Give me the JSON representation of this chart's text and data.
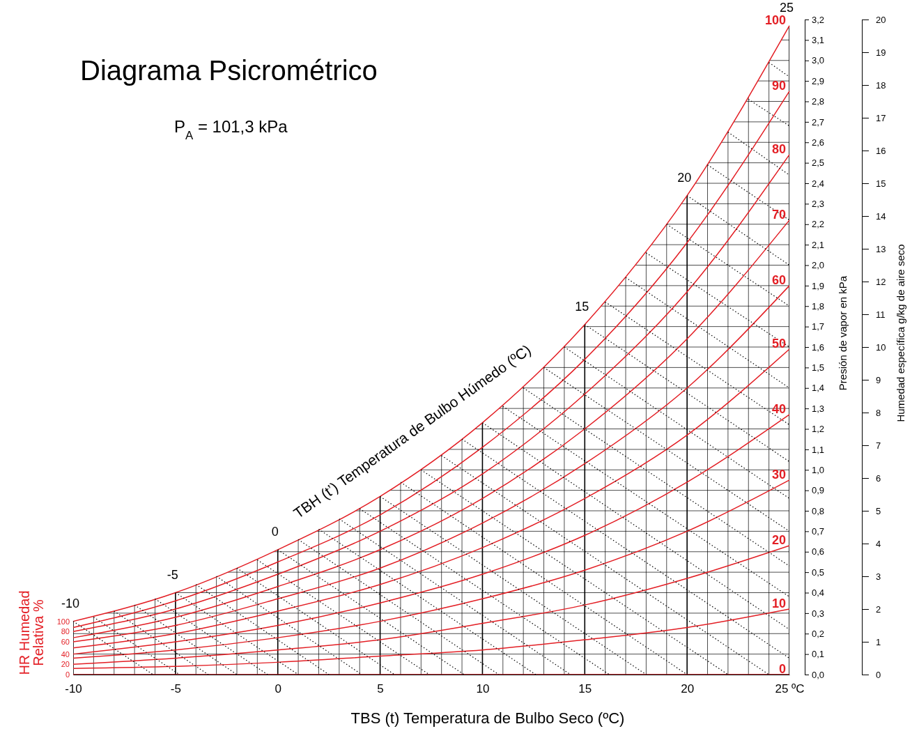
{
  "chart_data": {
    "type": "line",
    "title": "Diagrama Psicrométrico",
    "subtitle": "P$_{A}$ = 101,3 kPa",
    "xlabel": "TBS (t) Temperatura de Bulbo Seco (ºC)",
    "ylabel": "Presión de vapor en kPa",
    "y2label": "Humedad específica g/kg de aire seco",
    "annotations": [
      "TBH (t’) Temperatura de Bulbo Húmedo (ºC)",
      "HR Humedad Relativa %",
      {
        "text": "-10",
        "x": -10,
        "y": 0.26
      },
      {
        "text": "-5",
        "x": -5,
        "y": 0.4
      },
      {
        "text": "0",
        "x": 0,
        "y": 0.61
      },
      {
        "text": "15",
        "x": 15,
        "y": 1.71
      },
      {
        "text": "20",
        "x": 20,
        "y": 2.34
      },
      {
        "text": "25",
        "x": 25,
        "y": 3.17
      }
    ],
    "x": [
      -10,
      -5,
      0,
      5,
      10,
      15,
      20,
      25
    ],
    "xlim": [
      -10,
      25
    ],
    "ylim": [
      0,
      3.2
    ],
    "y2lim": [
      0,
      20
    ],
    "grid": true,
    "xticks": [
      -10,
      {
        "value": -9,
        "label": null
      },
      {
        "value": -8,
        "label": null
      },
      {
        "value": -7,
        "label": null
      },
      {
        "value": -6,
        "label": null
      },
      -5,
      {
        "value": -4,
        "label": null
      },
      {
        "value": -3,
        "label": null
      },
      {
        "value": -2,
        "label": null
      },
      {
        "value": -1,
        "label": null
      },
      0,
      {
        "value": 1,
        "label": null
      },
      {
        "value": 2,
        "label": null
      },
      {
        "value": 3,
        "label": null
      },
      {
        "value": 4,
        "label": null
      },
      5,
      {
        "value": 6,
        "label": null
      },
      {
        "value": 7,
        "label": null
      },
      {
        "value": 8,
        "label": null
      },
      {
        "value": 9,
        "label": null
      },
      10,
      {
        "value": 11,
        "label": null
      },
      {
        "value": 12,
        "label": null
      },
      {
        "value": 13,
        "label": null
      },
      {
        "value": 14,
        "label": null
      },
      15,
      {
        "value": 16,
        "label": null
      },
      {
        "value": 17,
        "label": null
      },
      {
        "value": 18,
        "label": null
      },
      {
        "value": 19,
        "label": null
      },
      20,
      {
        "value": 21,
        "label": null
      },
      {
        "value": 22,
        "label": null
      },
      {
        "value": 23,
        "label": null
      },
      {
        "value": 24,
        "label": null
      },
      {
        "value": 25,
        "label": "25 ºC"
      }
    ],
    "yticks": [
      {
        "value": 0,
        "label": "0,0"
      },
      {
        "value": 0.1,
        "label": "0,1"
      },
      {
        "value": 0.2,
        "label": "0,2"
      },
      {
        "value": 0.3,
        "label": "0,3"
      },
      {
        "value": 0.4,
        "label": "0,4"
      },
      {
        "value": 0.5,
        "label": "0,5"
      },
      {
        "value": 0.6,
        "label": "0,6"
      },
      {
        "value": 0.7,
        "label": "0,7"
      },
      {
        "value": 0.8,
        "label": "0,8"
      },
      {
        "value": 0.9,
        "label": "0,9"
      },
      {
        "value": 1.0,
        "label": "1,0"
      },
      {
        "value": 1.1,
        "label": "1,1"
      },
      {
        "value": 1.2,
        "label": "1,2"
      },
      {
        "value": 1.3,
        "label": "1,3"
      },
      {
        "value": 1.4,
        "label": "1,4"
      },
      {
        "value": 1.5,
        "label": "1,5"
      },
      {
        "value": 1.6,
        "label": "1,6"
      },
      {
        "value": 1.7,
        "label": "1,7"
      },
      {
        "value": 1.8,
        "label": "1,8"
      },
      {
        "value": 1.9,
        "label": "1,9"
      },
      {
        "value": 2.0,
        "label": "2,0"
      },
      {
        "value": 2.1,
        "label": "2,1"
      },
      {
        "value": 2.2,
        "label": "2,2"
      },
      {
        "value": 2.3,
        "label": "2,3"
      },
      {
        "value": 2.4,
        "label": "2,4"
      },
      {
        "value": 2.5,
        "label": "2,5"
      },
      {
        "value": 2.6,
        "label": "2,6"
      },
      {
        "value": 2.7,
        "label": "2,7"
      },
      {
        "value": 2.8,
        "label": "2,8"
      },
      {
        "value": 2.9,
        "label": "2,9"
      },
      {
        "value": 3.0,
        "label": "3,0"
      },
      {
        "value": 3.1,
        "label": "3,1"
      },
      {
        "value": 3.2,
        "label": "3,2"
      }
    ],
    "y2ticks": [
      0,
      1,
      2,
      3,
      4,
      5,
      6,
      7,
      8,
      9,
      10,
      11,
      12,
      13,
      14,
      15,
      16,
      17,
      18,
      19,
      20
    ],
    "series": [
      {
        "name": "100",
        "color": "#e31e24",
        "values": [
          0.26,
          0.4,
          0.61,
          0.87,
          1.23,
          1.71,
          2.34,
          3.17
        ]
      },
      {
        "name": "90",
        "color": "#e31e24",
        "values": [
          0.23,
          0.36,
          0.55,
          0.78,
          1.11,
          1.54,
          2.11,
          2.85
        ]
      },
      {
        "name": "80",
        "color": "#e31e24",
        "values": [
          0.21,
          0.32,
          0.49,
          0.7,
          0.98,
          1.37,
          1.87,
          2.54
        ]
      },
      {
        "name": "70",
        "color": "#e31e24",
        "values": [
          0.18,
          0.28,
          0.43,
          0.61,
          0.86,
          1.2,
          1.64,
          2.22
        ]
      },
      {
        "name": "60",
        "color": "#e31e24",
        "values": [
          0.16,
          0.24,
          0.37,
          0.52,
          0.74,
          1.03,
          1.4,
          1.9
        ]
      },
      {
        "name": "50",
        "color": "#e31e24",
        "values": [
          0.13,
          0.2,
          0.31,
          0.44,
          0.62,
          0.86,
          1.17,
          1.59
        ]
      },
      {
        "name": "40",
        "color": "#e31e24",
        "values": [
          0.1,
          0.16,
          0.24,
          0.35,
          0.49,
          0.68,
          0.94,
          1.27
        ]
      },
      {
        "name": "30",
        "color": "#e31e24",
        "values": [
          0.08,
          0.12,
          0.18,
          0.26,
          0.37,
          0.51,
          0.7,
          0.95
        ]
      },
      {
        "name": "20",
        "color": "#e31e24",
        "values": [
          0.05,
          0.08,
          0.12,
          0.17,
          0.25,
          0.34,
          0.47,
          0.63
        ]
      },
      {
        "name": "10",
        "color": "#e31e24",
        "values": [
          0.03,
          0.04,
          0.06,
          0.09,
          0.12,
          0.17,
          0.23,
          0.32
        ]
      },
      {
        "name": "0",
        "color": "#e31e24",
        "values": [
          0,
          0,
          0,
          0,
          0,
          0,
          0,
          0
        ]
      },
      {
        "x": [
          -10,
          -6.1
        ],
        "values": [
          0.26,
          0
        ],
        "color": "#000000",
        "line_style": "dotted"
      },
      {
        "x": [
          -9,
          -4.8
        ],
        "values": [
          0.28,
          0
        ],
        "color": "#000000",
        "line_style": "dotted"
      },
      {
        "x": [
          -8,
          -3.4
        ],
        "values": [
          0.31,
          0
        ],
        "color": "#000000",
        "line_style": "dotted"
      },
      {
        "x": [
          -7,
          -2.0
        ],
        "values": [
          0.34,
          0
        ],
        "color": "#000000",
        "line_style": "dotted"
      },
      {
        "x": [
          -6,
          -0.5
        ],
        "values": [
          0.37,
          0
        ],
        "color": "#000000",
        "line_style": "dotted"
      },
      {
        "x": [
          -5,
          1.0
        ],
        "values": [
          0.4,
          0
        ],
        "color": "#000000",
        "line_style": "dotted"
      },
      {
        "x": [
          -4,
          2.5
        ],
        "values": [
          0.44,
          0
        ],
        "color": "#000000",
        "line_style": "dotted"
      },
      {
        "x": [
          -3,
          4.1
        ],
        "values": [
          0.48,
          0
        ],
        "color": "#000000",
        "line_style": "dotted"
      },
      {
        "x": [
          -2,
          5.7
        ],
        "values": [
          0.52,
          0
        ],
        "color": "#000000",
        "line_style": "dotted"
      },
      {
        "x": [
          -1,
          7.4
        ],
        "values": [
          0.56,
          0
        ],
        "color": "#000000",
        "line_style": "dotted"
      },
      {
        "x": [
          0,
          9.1
        ],
        "values": [
          0.61,
          0
        ],
        "color": "#000000",
        "line_style": "dotted"
      },
      {
        "x": [
          1,
          10.8
        ],
        "values": [
          0.66,
          0
        ],
        "color": "#000000",
        "line_style": "dotted"
      },
      {
        "x": [
          2,
          12.6
        ],
        "values": [
          0.71,
          0
        ],
        "color": "#000000",
        "line_style": "dotted"
      },
      {
        "x": [
          3,
          14.3
        ],
        "values": [
          0.76,
          0
        ],
        "color": "#000000",
        "line_style": "dotted"
      },
      {
        "x": [
          4,
          16.2
        ],
        "values": [
          0.81,
          0
        ],
        "color": "#000000",
        "line_style": "dotted"
      },
      {
        "x": [
          5,
          18.0
        ],
        "values": [
          0.87,
          0
        ],
        "color": "#000000",
        "line_style": "dotted"
      },
      {
        "x": [
          6,
          20.0
        ],
        "values": [
          0.94,
          0
        ],
        "color": "#000000",
        "line_style": "dotted"
      },
      {
        "x": [
          7,
          22.0
        ],
        "values": [
          1.0,
          0
        ],
        "color": "#000000",
        "line_style": "dotted"
      },
      {
        "x": [
          8,
          24.0
        ],
        "values": [
          1.07,
          0
        ],
        "color": "#000000",
        "line_style": "dotted"
      },
      {
        "x": [
          9,
          25
        ],
        "values": [
          1.15,
          0.08
        ],
        "color": "#000000",
        "line_style": "dotted"
      },
      {
        "x": [
          10,
          25
        ],
        "values": [
          1.23,
          0.22
        ],
        "color": "#000000",
        "line_style": "dotted"
      },
      {
        "x": [
          11,
          25
        ],
        "values": [
          1.31,
          0.38
        ],
        "color": "#000000",
        "line_style": "dotted"
      },
      {
        "x": [
          12,
          25
        ],
        "values": [
          1.4,
          0.53
        ],
        "color": "#000000",
        "line_style": "dotted"
      },
      {
        "x": [
          13,
          25
        ],
        "values": [
          1.5,
          0.7
        ],
        "color": "#000000",
        "line_style": "dotted"
      },
      {
        "x": [
          14,
          25
        ],
        "values": [
          1.6,
          0.86
        ],
        "color": "#000000",
        "line_style": "dotted"
      },
      {
        "x": [
          15,
          25
        ],
        "values": [
          1.71,
          1.04
        ],
        "color": "#000000",
        "line_style": "dotted"
      },
      {
        "x": [
          16,
          25
        ],
        "values": [
          1.82,
          1.22
        ],
        "color": "#000000",
        "line_style": "dotted"
      },
      {
        "x": [
          17,
          25
        ],
        "values": [
          1.94,
          1.4
        ],
        "color": "#000000",
        "line_style": "dotted"
      },
      {
        "x": [
          18,
          25
        ],
        "values": [
          2.06,
          1.6
        ],
        "color": "#000000",
        "line_style": "dotted"
      },
      {
        "x": [
          19,
          25
        ],
        "values": [
          2.2,
          1.8
        ],
        "color": "#000000",
        "line_style": "dotted"
      },
      {
        "x": [
          20,
          25
        ],
        "values": [
          2.34,
          2.0
        ],
        "color": "#000000",
        "line_style": "dotted"
      },
      {
        "x": [
          21,
          25
        ],
        "values": [
          2.49,
          2.22
        ],
        "color": "#000000",
        "line_style": "dotted"
      },
      {
        "x": [
          22,
          25
        ],
        "values": [
          2.65,
          2.44
        ],
        "color": "#000000",
        "line_style": "dotted"
      },
      {
        "x": [
          23,
          25
        ],
        "values": [
          2.81,
          2.68
        ],
        "color": "#000000",
        "line_style": "dotted"
      },
      {
        "x": [
          24,
          25
        ],
        "values": [
          2.99,
          2.92
        ],
        "color": "#000000",
        "line_style": "dotted"
      }
    ]
  }
}
